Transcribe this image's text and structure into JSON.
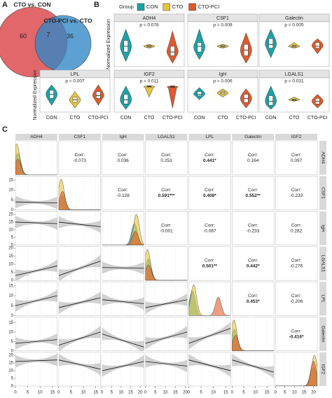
{
  "chart_data": [
    {
      "type": "venn",
      "panel": "A",
      "sets": [
        {
          "name": "CTO vs. CON",
          "color": "#e1676a",
          "text_color": "#d0233a",
          "only": 60
        },
        {
          "name": "CTO-PCI vs. CTO",
          "color": "#2f86c6",
          "text_color": "#1f78bd",
          "only": 36
        }
      ],
      "overlap": 7
    },
    {
      "type": "violin",
      "panel": "B",
      "y_label": "Normalized Expression",
      "legend_title": "Group",
      "categories": [
        "CON",
        "CTO",
        "CTO-PCI"
      ],
      "colors": [
        "#1aa3a8",
        "#e9c43b",
        "#e05a2b"
      ],
      "ylim": [
        0,
        1
      ],
      "panels": [
        {
          "title": "ADH4",
          "annotation": "p = 0.078",
          "boxes": [
            [
              0.1,
              0.35,
              0.5,
              0.65,
              0.95
            ],
            [
              0.45,
              0.48,
              0.5,
              0.52,
              0.55
            ],
            [
              0.05,
              0.25,
              0.35,
              0.5,
              0.9
            ]
          ]
        },
        {
          "title": "CSF1",
          "annotation": "p = 0.009",
          "boxes": [
            [
              0.15,
              0.35,
              0.5,
              0.6,
              0.95
            ],
            [
              0.45,
              0.48,
              0.5,
              0.52,
              0.55
            ],
            [
              0.05,
              0.25,
              0.4,
              0.55,
              0.85
            ]
          ]
        },
        {
          "title": "Galectin",
          "annotation": "p = 0.005",
          "boxes": [
            [
              0.2,
              0.45,
              0.55,
              0.7,
              0.95
            ],
            [
              0.45,
              0.48,
              0.5,
              0.52,
              0.6
            ],
            [
              0.3,
              0.45,
              0.5,
              0.6,
              0.7
            ]
          ]
        },
        {
          "title": "LPL",
          "annotation": "p = 0.007",
          "boxes": [
            [
              0.2,
              0.45,
              0.6,
              0.75,
              0.95
            ],
            [
              0.1,
              0.3,
              0.4,
              0.5,
              0.7
            ],
            [
              0.2,
              0.45,
              0.55,
              0.7,
              0.95
            ]
          ]
        },
        {
          "title": "IGF2",
          "annotation": "p = 0.011",
          "boxes": [
            [
              0.05,
              0.25,
              0.4,
              0.6,
              0.9
            ],
            [
              0.5,
              0.85,
              0.88,
              0.9,
              0.92
            ],
            [
              0.1,
              0.85,
              0.87,
              0.89,
              0.92
            ]
          ]
        },
        {
          "title": "IgH",
          "annotation": "p = 0.006",
          "boxes": [
            [
              0.4,
              0.55,
              0.6,
              0.7,
              0.85
            ],
            [
              0.5,
              0.6,
              0.65,
              0.7,
              0.8
            ],
            [
              0.1,
              0.3,
              0.45,
              0.6,
              0.8
            ]
          ]
        },
        {
          "title": "LGALS1",
          "annotation": "p = 0.031",
          "boxes": [
            [
              0.05,
              0.2,
              0.35,
              0.55,
              0.9
            ],
            [
              0.35,
              0.38,
              0.4,
              0.43,
              0.5
            ],
            [
              0.1,
              0.25,
              0.35,
              0.45,
              0.6
            ]
          ]
        }
      ]
    },
    {
      "type": "pairs",
      "panel": "C",
      "corr_label": "Corr:",
      "variables": [
        "ADH4",
        "CSF1",
        "IgH",
        "LGALS1",
        "LPL",
        "Galectin",
        "IGF2"
      ],
      "colors": [
        "#1aa3a8",
        "#e9c43b",
        "#e05a2b"
      ],
      "axes": [
        {
          "lim": [
            0,
            17
          ],
          "ticks": [
            0,
            5,
            10,
            15
          ]
        },
        {
          "lim": [
            0,
            17
          ],
          "ticks": [
            0,
            5,
            10,
            15
          ]
        },
        {
          "lim": [
            0,
            22
          ],
          "ticks": [
            0,
            5,
            10,
            15,
            20
          ]
        },
        {
          "lim": [
            0,
            21
          ],
          "ticks": [
            0,
            5,
            10,
            15,
            20
          ]
        },
        {
          "lim": [
            0,
            17
          ],
          "ticks": [
            0,
            5,
            10,
            15
          ]
        },
        {
          "lim": [
            0,
            18
          ],
          "ticks": [
            0,
            5,
            10,
            15
          ]
        },
        {
          "lim": [
            0,
            22
          ],
          "ticks": [
            0,
            5,
            10,
            15,
            20
          ]
        }
      ],
      "correlations": [
        [
          {
            "value": -0.073,
            "label": "-0.073"
          },
          {
            "value": 0.036,
            "label": "0.036"
          },
          {
            "value": 0.253,
            "label": "0.253"
          },
          {
            "value": 0.441,
            "label": "0.441*"
          },
          {
            "value": 0.164,
            "label": "0.164"
          },
          {
            "value": 0.097,
            "label": "0.097"
          }
        ],
        [
          {
            "value": -0.128,
            "label": "-0.128"
          },
          {
            "value": 0.591,
            "label": "0.591***"
          },
          {
            "value": 0.408,
            "label": "0.408*"
          },
          {
            "value": 0.552,
            "label": "0.552**"
          },
          {
            "value": -0.233,
            "label": "-0.233"
          }
        ],
        [
          {
            "value": -0.001,
            "label": "-0.001"
          },
          {
            "value": -0.087,
            "label": "-0.087"
          },
          {
            "value": -0.233,
            "label": "-0.233"
          },
          {
            "value": 0.282,
            "label": "0.282"
          }
        ],
        [
          {
            "value": 0.501,
            "label": "0.501**"
          },
          {
            "value": 0.442,
            "label": "0.442*"
          },
          {
            "value": -0.276,
            "label": "-0.276"
          }
        ],
        [
          {
            "value": 0.453,
            "label": "0.453*"
          },
          {
            "value": -0.206,
            "label": "-0.206"
          }
        ],
        [
          {
            "value": -0.416,
            "label": "-0.416*"
          }
        ],
        []
      ],
      "fits": [
        [],
        [
          [
            4,
            3.5
          ]
        ],
        [
          [
            15,
            14
          ],
          [
            15,
            12
          ]
        ],
        [
          [
            3,
            9
          ],
          [
            3,
            12
          ],
          [
            8,
            7.5
          ]
        ],
        [
          [
            5,
            10
          ],
          [
            4,
            9
          ],
          [
            8,
            6
          ],
          [
            4,
            8
          ]
        ],
        [
          [
            4,
            6
          ],
          [
            3,
            10
          ],
          [
            9,
            2
          ],
          [
            4,
            10
          ],
          [
            4,
            12
          ]
        ],
        [
          [
            16,
            17
          ],
          [
            17,
            11
          ],
          [
            10,
            16
          ],
          [
            16,
            13
          ],
          [
            17,
            10
          ],
          [
            17,
            9
          ]
        ]
      ],
      "densities": [
        [
          [
            1,
            0.7
          ],
          [
            0.5,
            1
          ],
          [
            1,
            0.5
          ]
        ],
        [
          [
            1.5,
            0.45
          ],
          [
            1,
            1
          ],
          [
            1.5,
            0.6
          ]
        ],
        [
          [
            17,
            0.7
          ],
          [
            18,
            1
          ],
          [
            17.5,
            0.45
          ]
        ],
        [
          [
            1.5,
            0.7
          ],
          [
            1,
            1
          ],
          [
            1.5,
            0.5
          ]
        ],
        [
          [
            1.5,
            0.8
          ],
          [
            2,
            1
          ],
          [
            12,
            0.6
          ]
        ],
        [
          [
            1,
            0.7
          ],
          [
            0.8,
            1
          ],
          [
            1.5,
            0.5
          ]
        ],
        [
          [
            20,
            0.6
          ],
          [
            20.5,
            1
          ],
          [
            20,
            0.8
          ]
        ]
      ]
    }
  ]
}
